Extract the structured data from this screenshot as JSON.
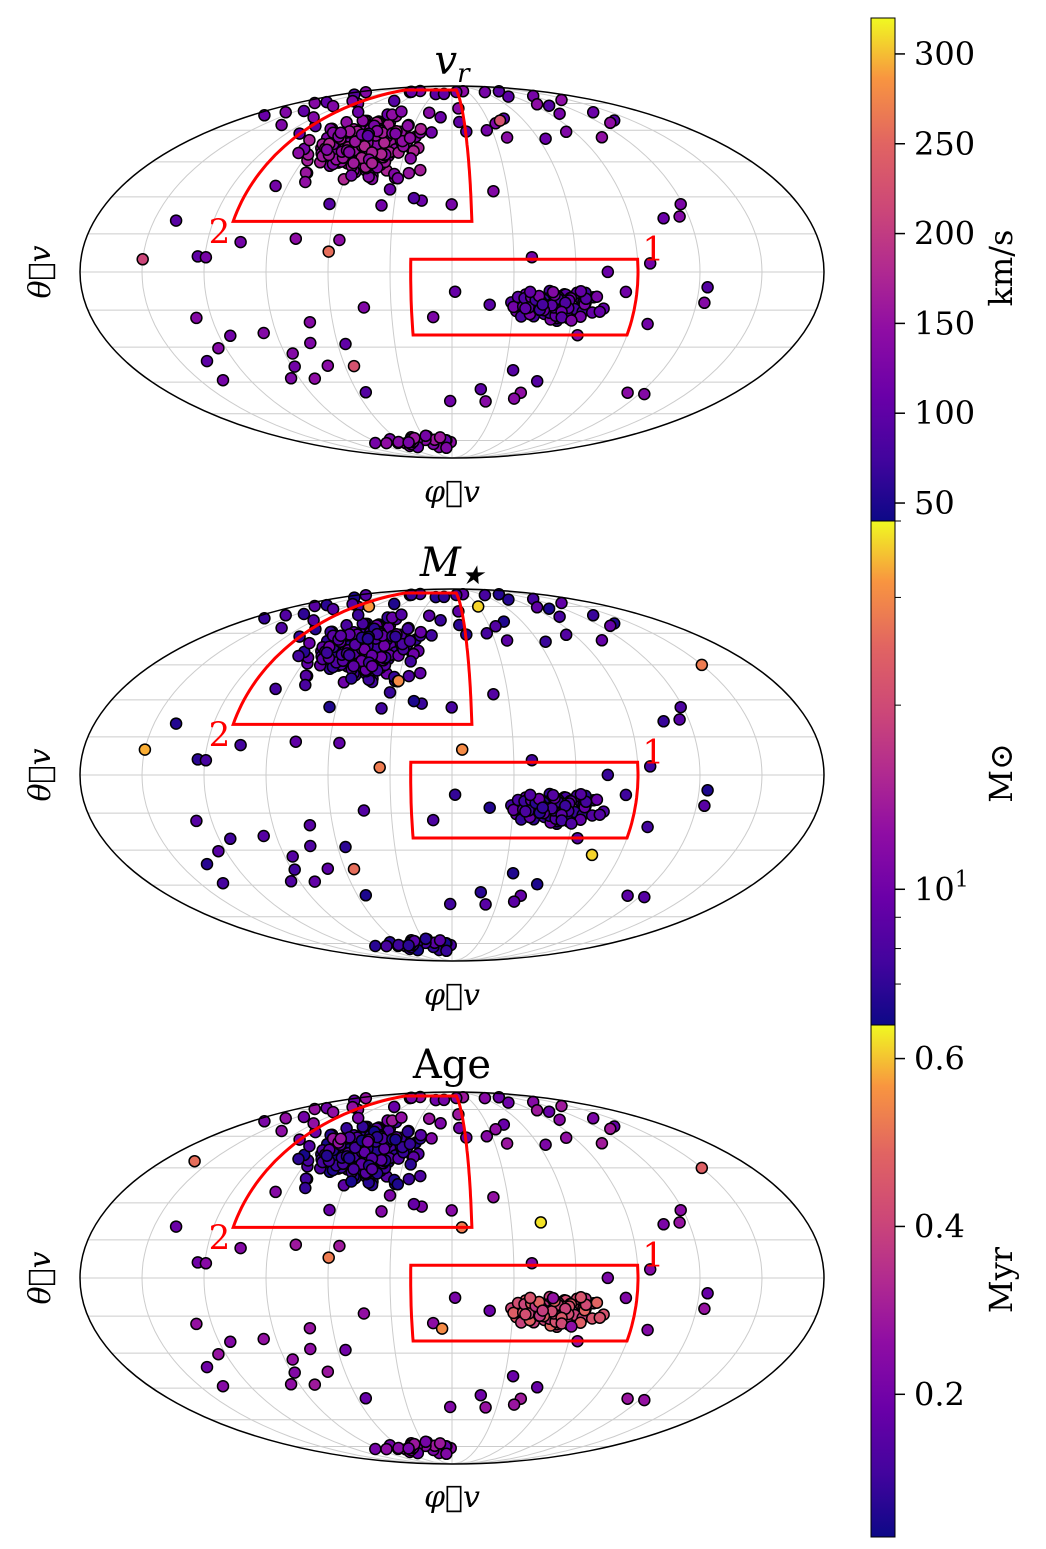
{
  "colors": {
    "region": "#ff0000",
    "grid": "#cccccc",
    "edge": "#000000",
    "colormap": "plasma"
  },
  "chart_data": {
    "type": "scatter",
    "projection": "mollweide",
    "panels": [
      {
        "title": "v_r",
        "title_main": "v",
        "title_sub": "r",
        "xlabel": "φ⃗v",
        "ylabel": "θ⃗v",
        "colorbar": {
          "label": "km/s",
          "scale": "linear",
          "range": [
            40,
            320
          ],
          "ticks": [
            "50",
            "100",
            "150",
            "200",
            "250",
            "300"
          ],
          "tick_values": [
            50,
            100,
            150,
            200,
            250,
            300
          ]
        },
        "cluster_values": {
          "region_2": 0.35,
          "region_1": 0.18,
          "south_pole": 0.3,
          "scattered": 0.25
        },
        "notable_points": [
          {
            "lon": -150,
            "lat": 5,
            "value": 0.55
          },
          {
            "lon": -55,
            "lat": -38,
            "value": 0.6
          },
          {
            "lon": -60,
            "lat": 8,
            "value": 0.7
          },
          {
            "lon": 40,
            "lat": 65,
            "value": 0.6
          }
        ]
      },
      {
        "title": "M_★",
        "title_main": "M",
        "title_sub": "★",
        "xlabel": "φ⃗v",
        "ylabel": "θ⃗v",
        "colorbar": {
          "label": "M⊙",
          "scale": "log",
          "range": [
            6,
            40
          ],
          "ticks": [
            "10^1"
          ],
          "tick_values": [
            10
          ]
        },
        "cluster_values": {
          "region_2": 0.15,
          "region_1": 0.13,
          "south_pole": 0.1,
          "scattered": 0.12
        },
        "notable_points": [
          {
            "lon": -150,
            "lat": 10,
            "value": 0.9
          },
          {
            "lon": -55,
            "lat": -38,
            "value": 0.7
          },
          {
            "lon": 5,
            "lat": 10,
            "value": 0.8
          },
          {
            "lon": -35,
            "lat": 3,
            "value": 0.75
          },
          {
            "lon": 150,
            "lat": 45,
            "value": 0.75
          },
          {
            "lon": 75,
            "lat": -32,
            "value": 0.95
          },
          {
            "lon": -95,
            "lat": 75,
            "value": 0.85
          },
          {
            "lon": 30,
            "lat": 75,
            "value": 0.95
          },
          {
            "lon": -30,
            "lat": 38,
            "value": 0.8
          }
        ]
      },
      {
        "title": "Age",
        "title_main": "Age",
        "title_sub": "",
        "xlabel": "φ⃗v",
        "ylabel": "θ⃗v",
        "colorbar": {
          "label": "Myr",
          "scale": "linear",
          "range": [
            0.03,
            0.64
          ],
          "ticks": [
            "0.2",
            "0.4",
            "0.6"
          ],
          "tick_values": [
            0.2,
            0.4,
            0.6
          ]
        },
        "cluster_values": {
          "region_2": 0.1,
          "region_1": 0.58,
          "south_pole": 0.3,
          "scattered": 0.3
        },
        "notable_points": [
          {
            "lon": 5,
            "lat": 20,
            "value": 0.75
          },
          {
            "lon": 45,
            "lat": 22,
            "value": 0.97
          },
          {
            "lon": -60,
            "lat": 8,
            "value": 0.75
          },
          {
            "lon": -5,
            "lat": -20,
            "value": 0.8
          },
          {
            "lon": 150,
            "lat": 45,
            "value": 0.65
          },
          {
            "lon": -160,
            "lat": 48,
            "value": 0.7
          }
        ]
      }
    ],
    "regions": [
      {
        "label": "1",
        "lon": [
          -20,
          90
        ],
        "lat": [
          -25,
          5
        ]
      },
      {
        "label": "2",
        "lon": [
          -110,
          10
        ],
        "lat": [
          20,
          85
        ]
      }
    ],
    "grid": true
  }
}
